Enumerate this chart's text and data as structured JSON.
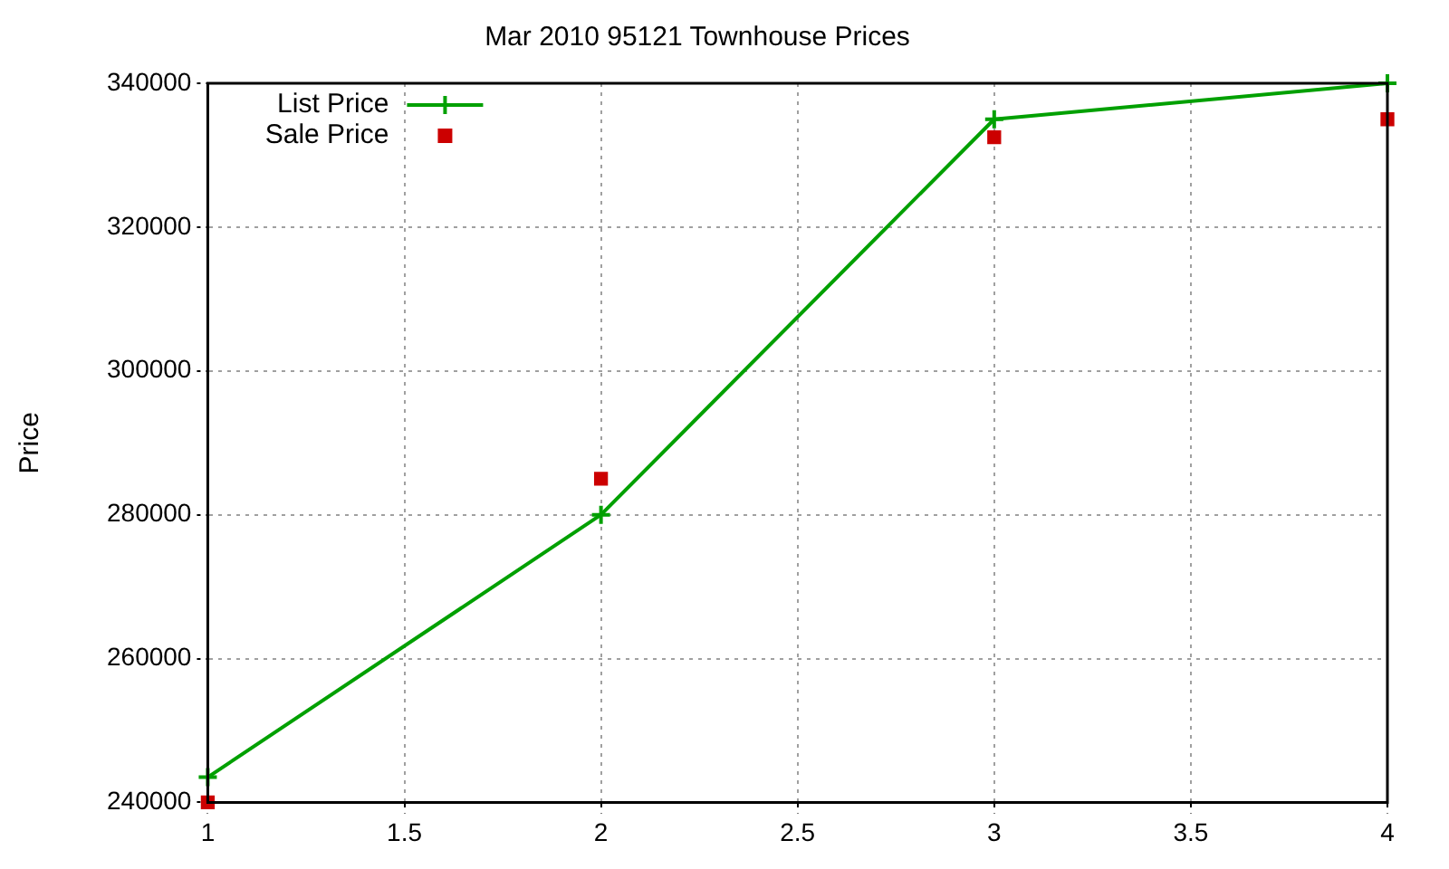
{
  "chart_data": {
    "type": "line",
    "title": "Mar 2010 95121 Townhouse Prices",
    "ylabel": "Price",
    "xlim": [
      1,
      4
    ],
    "xticks": [
      1,
      1.5,
      2,
      2.5,
      3,
      3.5,
      4
    ],
    "ylim": [
      240000,
      340000
    ],
    "yticks": [
      240000,
      260000,
      280000,
      300000,
      320000,
      340000
    ],
    "grid": true,
    "legend": "top left",
    "series": [
      {
        "name": "List Price",
        "type": "line",
        "color": "#00a000",
        "marker": "cross",
        "x": [
          1,
          2,
          3,
          4
        ],
        "values": [
          243500,
          280000,
          335000,
          340000
        ]
      },
      {
        "name": "Sale Price",
        "type": "scatter",
        "color": "#cc0000",
        "marker": "square",
        "x": [
          1,
          2,
          3,
          4
        ],
        "values": [
          240000,
          285000,
          332500,
          335000
        ]
      }
    ]
  }
}
